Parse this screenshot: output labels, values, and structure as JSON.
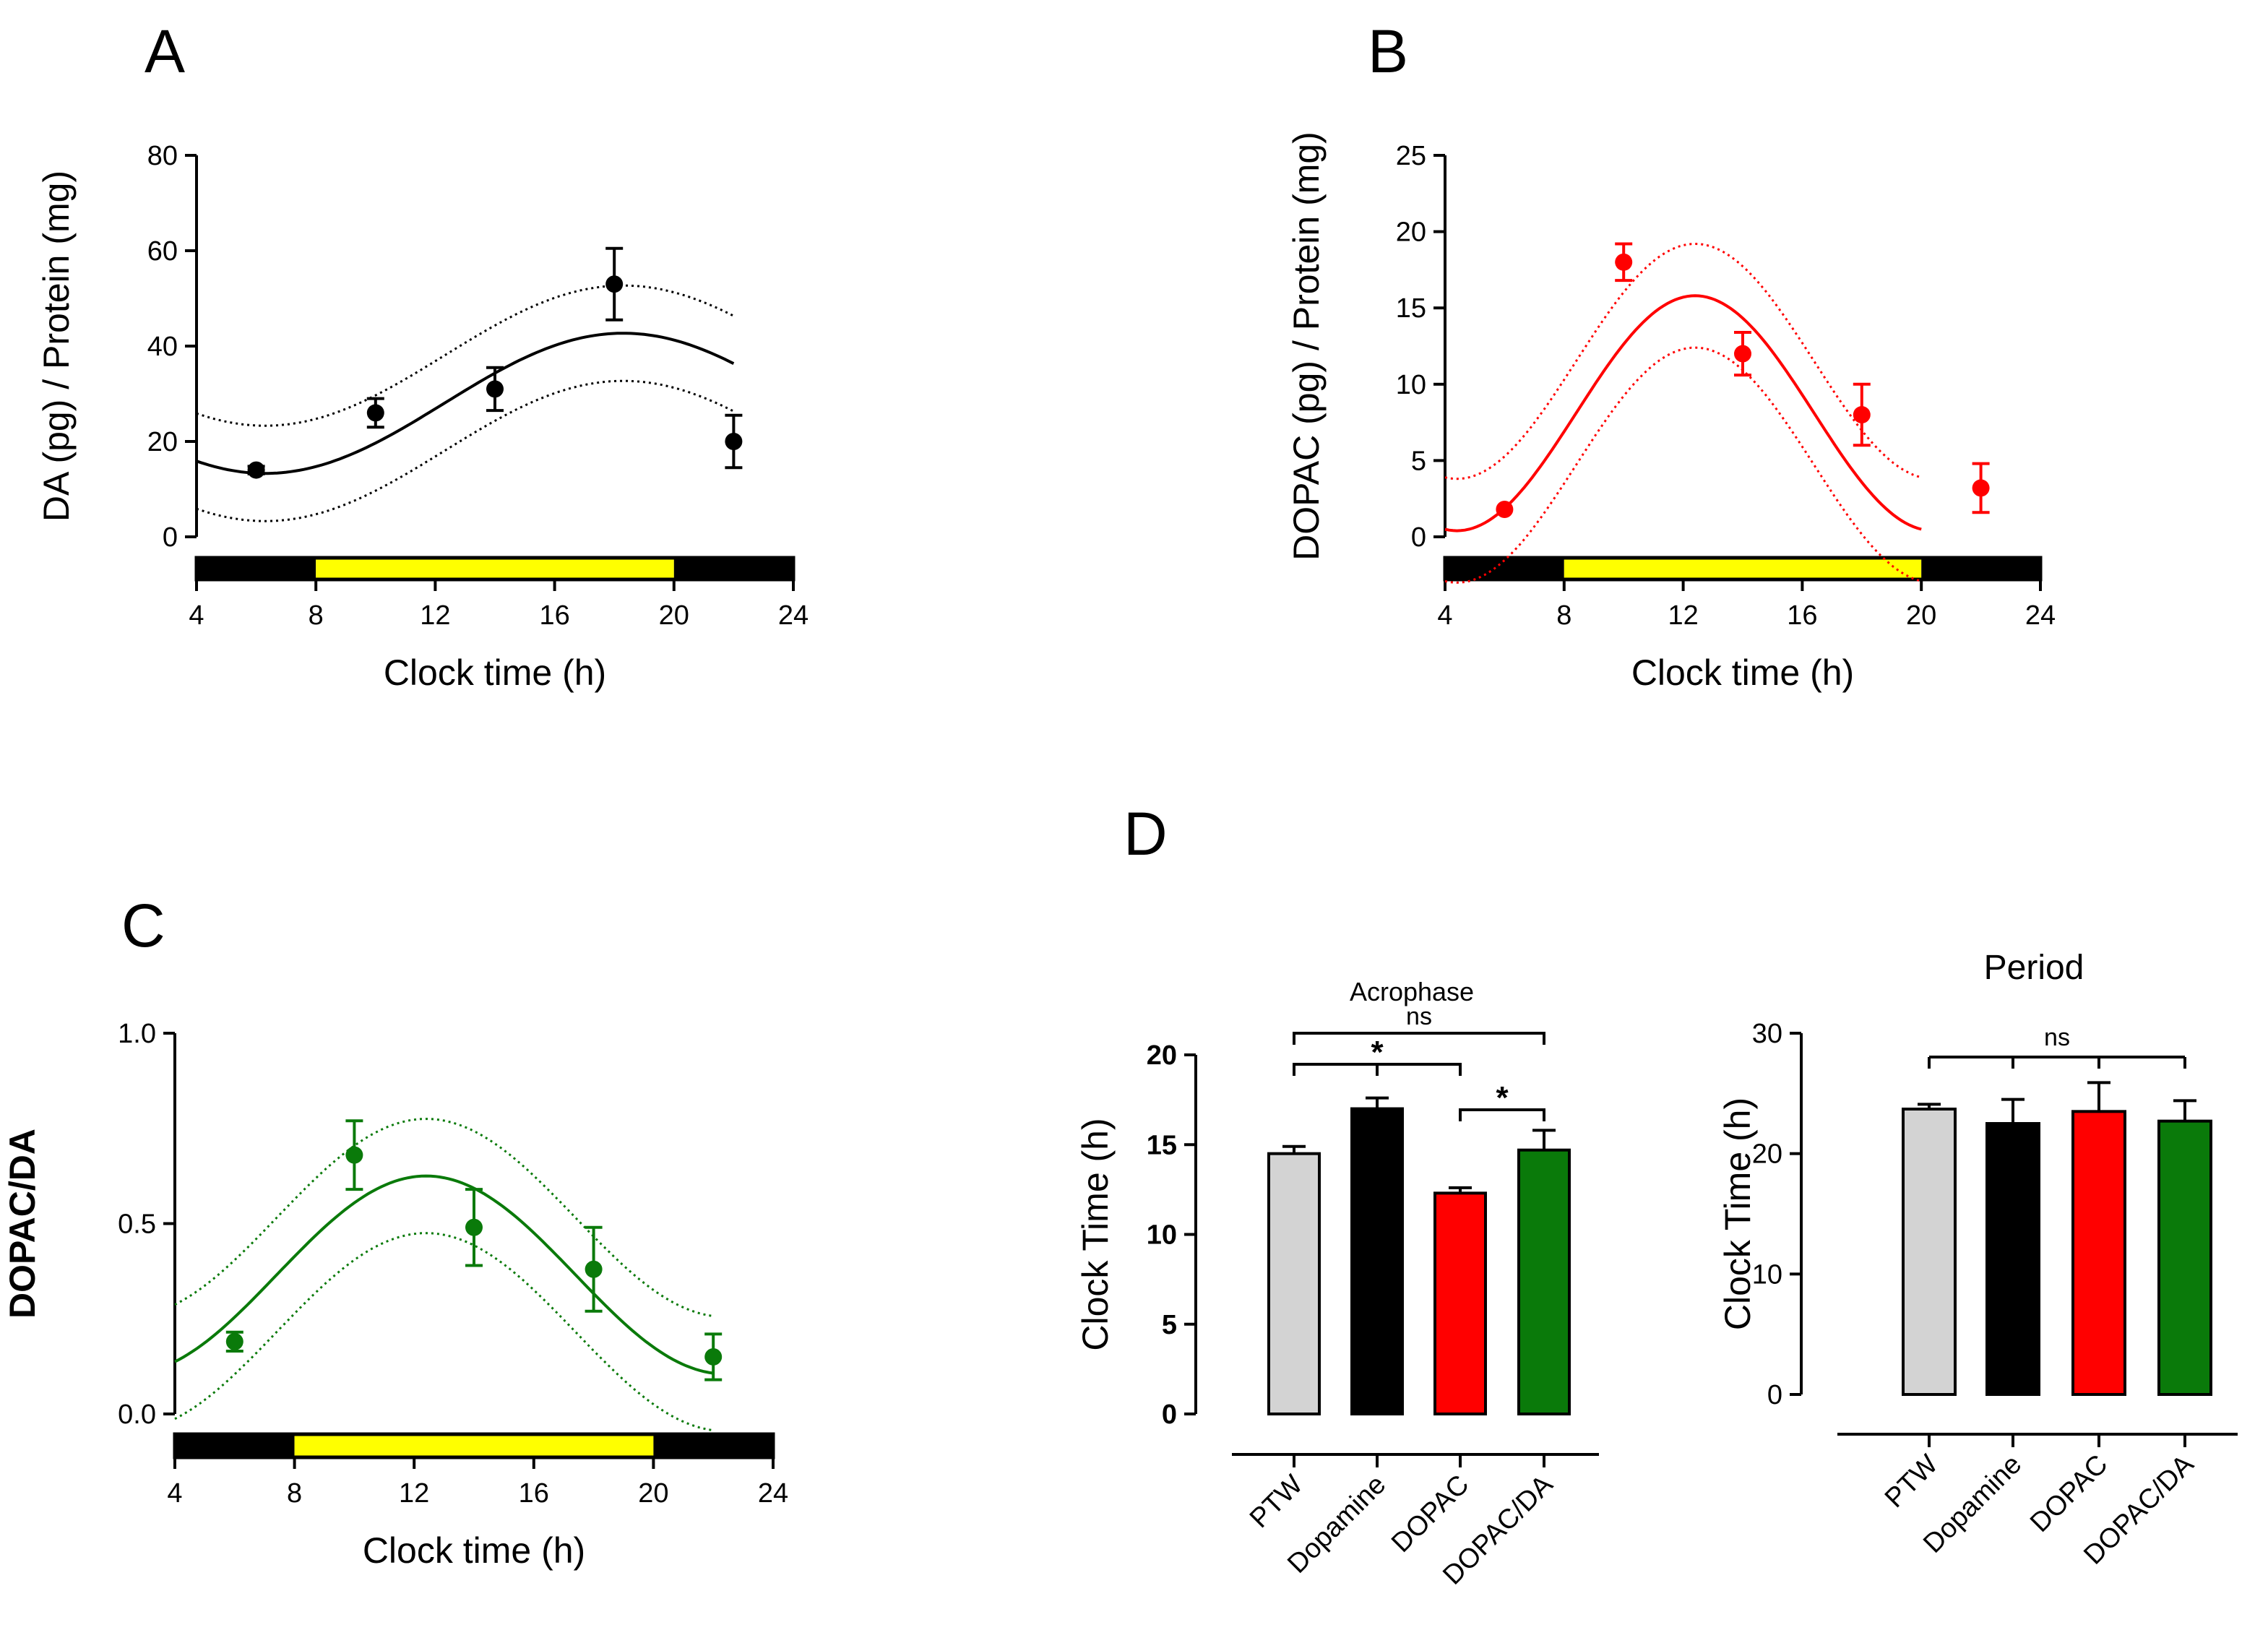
{
  "panels": {
    "A": {
      "label": "A"
    },
    "B": {
      "label": "B"
    },
    "C": {
      "label": "C"
    },
    "D": {
      "label": "D"
    }
  },
  "colors": {
    "black": "#000000",
    "red": "#ff0000",
    "green": "#0a7a0a",
    "gray": "#d3d3d3",
    "yellow": "#ffff00"
  },
  "chart_data": [
    {
      "id": "A",
      "type": "scatter",
      "title": "",
      "xlabel": "Clock time (h)",
      "ylabel": "DA (pg) / Protein (mg)",
      "xlim": [
        4,
        24
      ],
      "ylim": [
        0,
        80
      ],
      "xticks": [
        4,
        8,
        12,
        16,
        20,
        24
      ],
      "yticks": [
        0,
        20,
        40,
        60,
        80
      ],
      "light_dark_bar": [
        {
          "from": 4,
          "to": 8,
          "phase": "dark"
        },
        {
          "from": 8,
          "to": 20,
          "phase": "light"
        },
        {
          "from": 20,
          "to": 24,
          "phase": "dark"
        }
      ],
      "color": "#000000",
      "points": [
        {
          "x": 6,
          "y": 14,
          "err": 0.8
        },
        {
          "x": 10,
          "y": 26,
          "err": 3
        },
        {
          "x": 14,
          "y": 31,
          "err": 4.5
        },
        {
          "x": 18,
          "y": 53,
          "err": 7.5
        },
        {
          "x": 22,
          "y": 20,
          "err": 5.5
        }
      ],
      "fit": {
        "x_range": [
          4,
          22
        ],
        "mesor": 28,
        "amplitude": 14.7,
        "acrophase": 18.3,
        "period": 24,
        "band": 10
      }
    },
    {
      "id": "B",
      "type": "scatter",
      "title": "",
      "xlabel": "Clock time (h)",
      "ylabel": "DOPAC (pg) / Protein (mg)",
      "xlim": [
        4,
        24
      ],
      "ylim": [
        0,
        25
      ],
      "xticks": [
        4,
        8,
        12,
        16,
        20,
        24
      ],
      "yticks": [
        0,
        5,
        10,
        15,
        20,
        25
      ],
      "light_dark_bar": [
        {
          "from": 4,
          "to": 8,
          "phase": "dark"
        },
        {
          "from": 8,
          "to": 20,
          "phase": "light"
        },
        {
          "from": 20,
          "to": 24,
          "phase": "dark"
        }
      ],
      "color": "#ff0000",
      "points": [
        {
          "x": 6,
          "y": 1.8,
          "err": 0
        },
        {
          "x": 10,
          "y": 18,
          "err": 1.2
        },
        {
          "x": 14,
          "y": 12,
          "err": 1.4
        },
        {
          "x": 18,
          "y": 8,
          "err": 2
        },
        {
          "x": 22,
          "y": 3.2,
          "err": 1.6
        }
      ],
      "fit": {
        "x_range": [
          4,
          20
        ],
        "mesor": 8.1,
        "amplitude": 7.7,
        "acrophase": 12.4,
        "period": 16,
        "band": 3.4
      }
    },
    {
      "id": "C",
      "type": "scatter",
      "title": "",
      "xlabel": "Clock time (h)",
      "ylabel": "DOPAC/DA",
      "xlim": [
        4,
        24
      ],
      "ylim": [
        0,
        1.0
      ],
      "xticks": [
        4,
        8,
        12,
        16,
        20,
        24
      ],
      "yticks": [
        0.0,
        0.5,
        1.0
      ],
      "ytick_labels": [
        "0.0",
        "0.5",
        "1.0"
      ],
      "light_dark_bar": [
        {
          "from": 4,
          "to": 8,
          "phase": "dark"
        },
        {
          "from": 8,
          "to": 20,
          "phase": "light"
        },
        {
          "from": 20,
          "to": 24,
          "phase": "dark"
        }
      ],
      "color": "#0a7a0a",
      "points": [
        {
          "x": 6,
          "y": 0.19,
          "err": 0.025
        },
        {
          "x": 10,
          "y": 0.68,
          "err": 0.09
        },
        {
          "x": 14,
          "y": 0.49,
          "err": 0.1
        },
        {
          "x": 18,
          "y": 0.38,
          "err": 0.11
        },
        {
          "x": 22,
          "y": 0.15,
          "err": 0.06
        }
      ],
      "fit": {
        "x_range": [
          4,
          22
        ],
        "mesor": 0.365,
        "amplitude": 0.26,
        "acrophase": 12.4,
        "period": 20,
        "band": 0.15
      }
    },
    {
      "id": "D1",
      "type": "bar",
      "title": "Acrophase",
      "xlabel": "",
      "ylabel": "Clock Time (h)",
      "ylim": [
        0,
        20
      ],
      "yticks": [
        0,
        5,
        10,
        15,
        20
      ],
      "categories": [
        "PTW",
        "Dopamine",
        "DOPAC",
        "DOPAC/DA"
      ],
      "values": [
        14.5,
        17.0,
        12.3,
        14.7
      ],
      "errors": [
        0.4,
        0.6,
        0.3,
        1.1
      ],
      "colors": [
        "#d3d3d3",
        "#000000",
        "#ff0000",
        "#0a7a0a"
      ],
      "annotations": [
        {
          "from": 0,
          "to": 3,
          "text": "ns"
        },
        {
          "from": 0,
          "to": 2,
          "text": "*"
        },
        {
          "from": 2,
          "to": 3,
          "text": "*"
        }
      ]
    },
    {
      "id": "D2",
      "type": "bar",
      "title": "Period",
      "xlabel": "",
      "ylabel": "Clock Time (h)",
      "ylim": [
        0,
        30
      ],
      "yticks": [
        0,
        10,
        20,
        30
      ],
      "categories": [
        "PTW",
        "Dopamine",
        "DOPAC",
        "DOPAC/DA"
      ],
      "values": [
        23.7,
        22.5,
        23.5,
        22.7
      ],
      "errors": [
        0.4,
        2.0,
        2.4,
        1.7
      ],
      "colors": [
        "#d3d3d3",
        "#000000",
        "#ff0000",
        "#0a7a0a"
      ],
      "annotations": [
        {
          "from": 0,
          "to": 3,
          "text": "ns",
          "mode": "all"
        }
      ]
    }
  ]
}
